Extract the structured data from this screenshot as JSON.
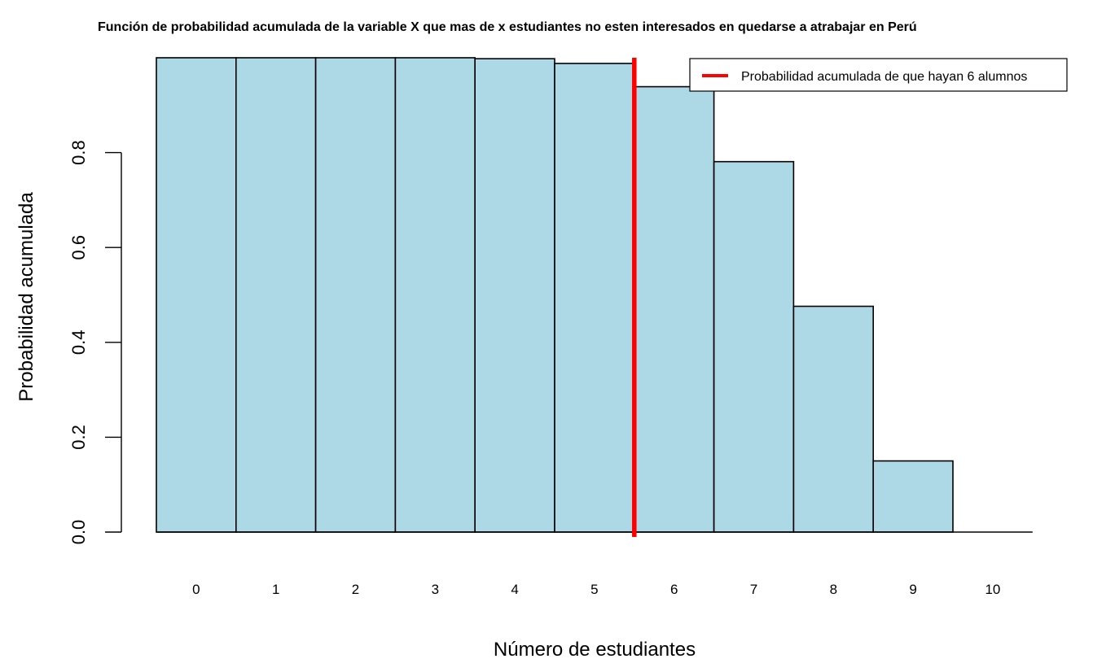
{
  "chart_data": {
    "type": "bar",
    "title": "Función de probabilidad acumulada de la variable X que mas de x estudiantes no esten interesados en quedarse a atrabajar en Perú",
    "xlabel": "Número de estudiantes",
    "ylabel": "Probabilidad acumulada",
    "categories": [
      "0",
      "1",
      "2",
      "3",
      "4",
      "5",
      "6",
      "7",
      "8",
      "9",
      "10"
    ],
    "values": [
      1.0,
      1.0,
      1.0,
      1.0,
      0.998,
      0.988,
      0.939,
      0.781,
      0.476,
      0.15,
      0.0
    ],
    "ylim": [
      0,
      1.0
    ],
    "yticks": [
      "0.0",
      "0.2",
      "0.4",
      "0.6",
      "0.8"
    ],
    "bar_color": "#ADD8E6",
    "reference_line": {
      "x_between_categories": [
        "5",
        "6"
      ],
      "color": "#FF0000",
      "label": "Probabilidad acumulada de que hayan 6 alumnos"
    },
    "legend_position": "top-right",
    "grid": false
  }
}
